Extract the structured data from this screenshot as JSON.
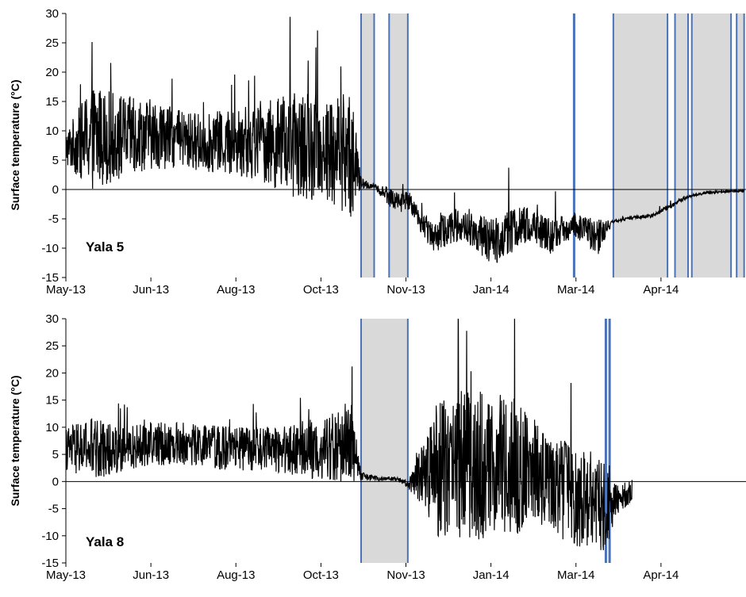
{
  "chart_data": [
    {
      "type": "line",
      "panel_label": "Yala 5",
      "ylabel": "Surface temperature (°C)",
      "ylim": [
        -15,
        30
      ],
      "yticks": [
        -15,
        -10,
        -5,
        0,
        5,
        10,
        15,
        20,
        25,
        30
      ],
      "xticks": [
        "May-13",
        "Jun-13",
        "Aug-13",
        "Oct-13",
        "Nov-13",
        "Jan-14",
        "Mar-14",
        "Apr-14"
      ],
      "xlim": [
        "2013-05-01",
        "2014-04-30"
      ],
      "shaded_periods": [
        [
          "2013-10-06",
          "2013-10-13"
        ],
        [
          "2013-10-21",
          "2013-10-31"
        ],
        [
          "2014-02-18",
          "2014-03-19"
        ],
        [
          "2014-03-23",
          "2014-03-30"
        ],
        [
          "2014-04-01",
          "2014-04-22"
        ],
        [
          "2014-04-25",
          "2014-04-29"
        ]
      ],
      "event_lines": [
        "2014-01-28"
      ],
      "series": [
        {
          "color": "#000000",
          "x": [
            "2013-05-01",
            "2013-05-15",
            "2013-06-01",
            "2013-06-15",
            "2013-07-01",
            "2013-07-15",
            "2013-08-01",
            "2013-08-15",
            "2013-09-01",
            "2013-09-15",
            "2013-10-01",
            "2013-10-06",
            "2013-10-13",
            "2013-10-20",
            "2013-10-25",
            "2013-11-01",
            "2013-11-08",
            "2013-11-15",
            "2013-11-25",
            "2013-12-05",
            "2013-12-15",
            "2013-12-25",
            "2014-01-05",
            "2014-01-15",
            "2014-01-28",
            "2014-02-10",
            "2014-02-18",
            "2014-02-25",
            "2014-03-10",
            "2014-03-20",
            "2014-03-25",
            "2014-04-01",
            "2014-04-10",
            "2014-04-29"
          ],
          "mean": [
            7,
            9,
            9,
            9.5,
            8.5,
            8,
            8,
            8,
            7.5,
            7,
            6,
            1,
            0.5,
            -1,
            -2,
            -2,
            -6,
            -8,
            -6,
            -7,
            -9,
            -7,
            -6,
            -8,
            -6,
            -8,
            -5.5,
            -5,
            -4.5,
            -3,
            -2,
            -1,
            -0.5,
            -0.2
          ],
          "spread": [
            3,
            9,
            7,
            6,
            5,
            5,
            6,
            7,
            9,
            9,
            11,
            1,
            0.4,
            1.5,
            2,
            1.5,
            2,
            3,
            3,
            3,
            4,
            4,
            3,
            3,
            2,
            3,
            0.2,
            0.3,
            0.3,
            0.4,
            0.3,
            0.2,
            0.3,
            0.2
          ]
        }
      ]
    },
    {
      "type": "line",
      "panel_label": "Yala 8",
      "ylabel": "Surface temperature (°C)",
      "ylim": [
        -15,
        30
      ],
      "yticks": [
        -15,
        -10,
        -5,
        0,
        5,
        10,
        15,
        20,
        25,
        30
      ],
      "xticks": [
        "May-13",
        "Jun-13",
        "Aug-13",
        "Oct-13",
        "Nov-13",
        "Jan-14",
        "Mar-14",
        "Apr-14"
      ],
      "xlim": [
        "2013-05-01",
        "2014-04-30"
      ],
      "shaded_periods": [
        [
          "2013-10-06",
          "2013-10-31"
        ]
      ],
      "event_lines": [
        "2014-02-14",
        "2014-02-16"
      ],
      "series": [
        {
          "color": "#000000",
          "x": [
            "2013-05-01",
            "2013-05-15",
            "2013-06-01",
            "2013-06-15",
            "2013-07-01",
            "2013-07-15",
            "2013-08-01",
            "2013-08-15",
            "2013-09-01",
            "2013-09-15",
            "2013-10-01",
            "2013-10-06",
            "2013-10-15",
            "2013-10-25",
            "2013-10-31",
            "2013-11-08",
            "2013-11-15",
            "2013-11-25",
            "2013-12-05",
            "2013-12-15",
            "2013-12-25",
            "2014-01-05",
            "2014-01-15",
            "2014-01-25",
            "2014-02-05",
            "2014-02-14",
            "2014-02-20",
            "2014-02-28"
          ],
          "mean": [
            6,
            6,
            6,
            7,
            7,
            6.5,
            6,
            6,
            6,
            6,
            7,
            1,
            0.5,
            0.5,
            -0.5,
            1,
            2,
            3,
            3,
            3,
            3,
            2,
            0,
            -2,
            -3,
            -4,
            -3,
            -2
          ],
          "spread": [
            4,
            6,
            4,
            4,
            4,
            4,
            4,
            4,
            5,
            6,
            7,
            0.8,
            0.4,
            0.4,
            0.6,
            6,
            12,
            14,
            14,
            13,
            13,
            11,
            8,
            10,
            9,
            9,
            3,
            2
          ]
        }
      ]
    }
  ]
}
